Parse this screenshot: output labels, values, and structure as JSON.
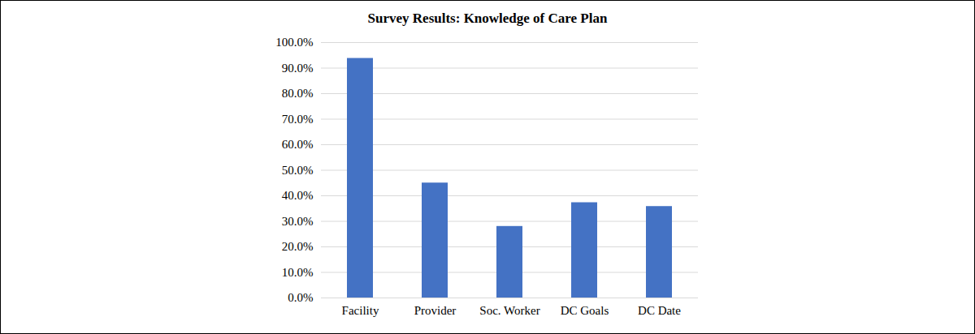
{
  "chart_data": {
    "type": "bar",
    "title": "Survey Results: Knowledge of Care Plan",
    "categories": [
      "Facility",
      "Provider",
      "Soc. Worker",
      "DC Goals",
      "DC Date"
    ],
    "values": [
      93.8,
      45.0,
      28.0,
      37.3,
      35.8
    ],
    "color": "#4472c4",
    "ylim": [
      0,
      100
    ],
    "yticks": [
      {
        "value": 0,
        "label": "0.0%"
      },
      {
        "value": 10,
        "label": "10.0%"
      },
      {
        "value": 20,
        "label": "20.0%"
      },
      {
        "value": 30,
        "label": "30.0%"
      },
      {
        "value": 40,
        "label": "40.0%"
      },
      {
        "value": 50,
        "label": "50.0%"
      },
      {
        "value": 60,
        "label": "60.0%"
      },
      {
        "value": 70,
        "label": "70.0%"
      },
      {
        "value": 80,
        "label": "80.0%"
      },
      {
        "value": 90,
        "label": "90.0%"
      },
      {
        "value": 100,
        "label": "100.0%"
      }
    ],
    "grid": true
  }
}
